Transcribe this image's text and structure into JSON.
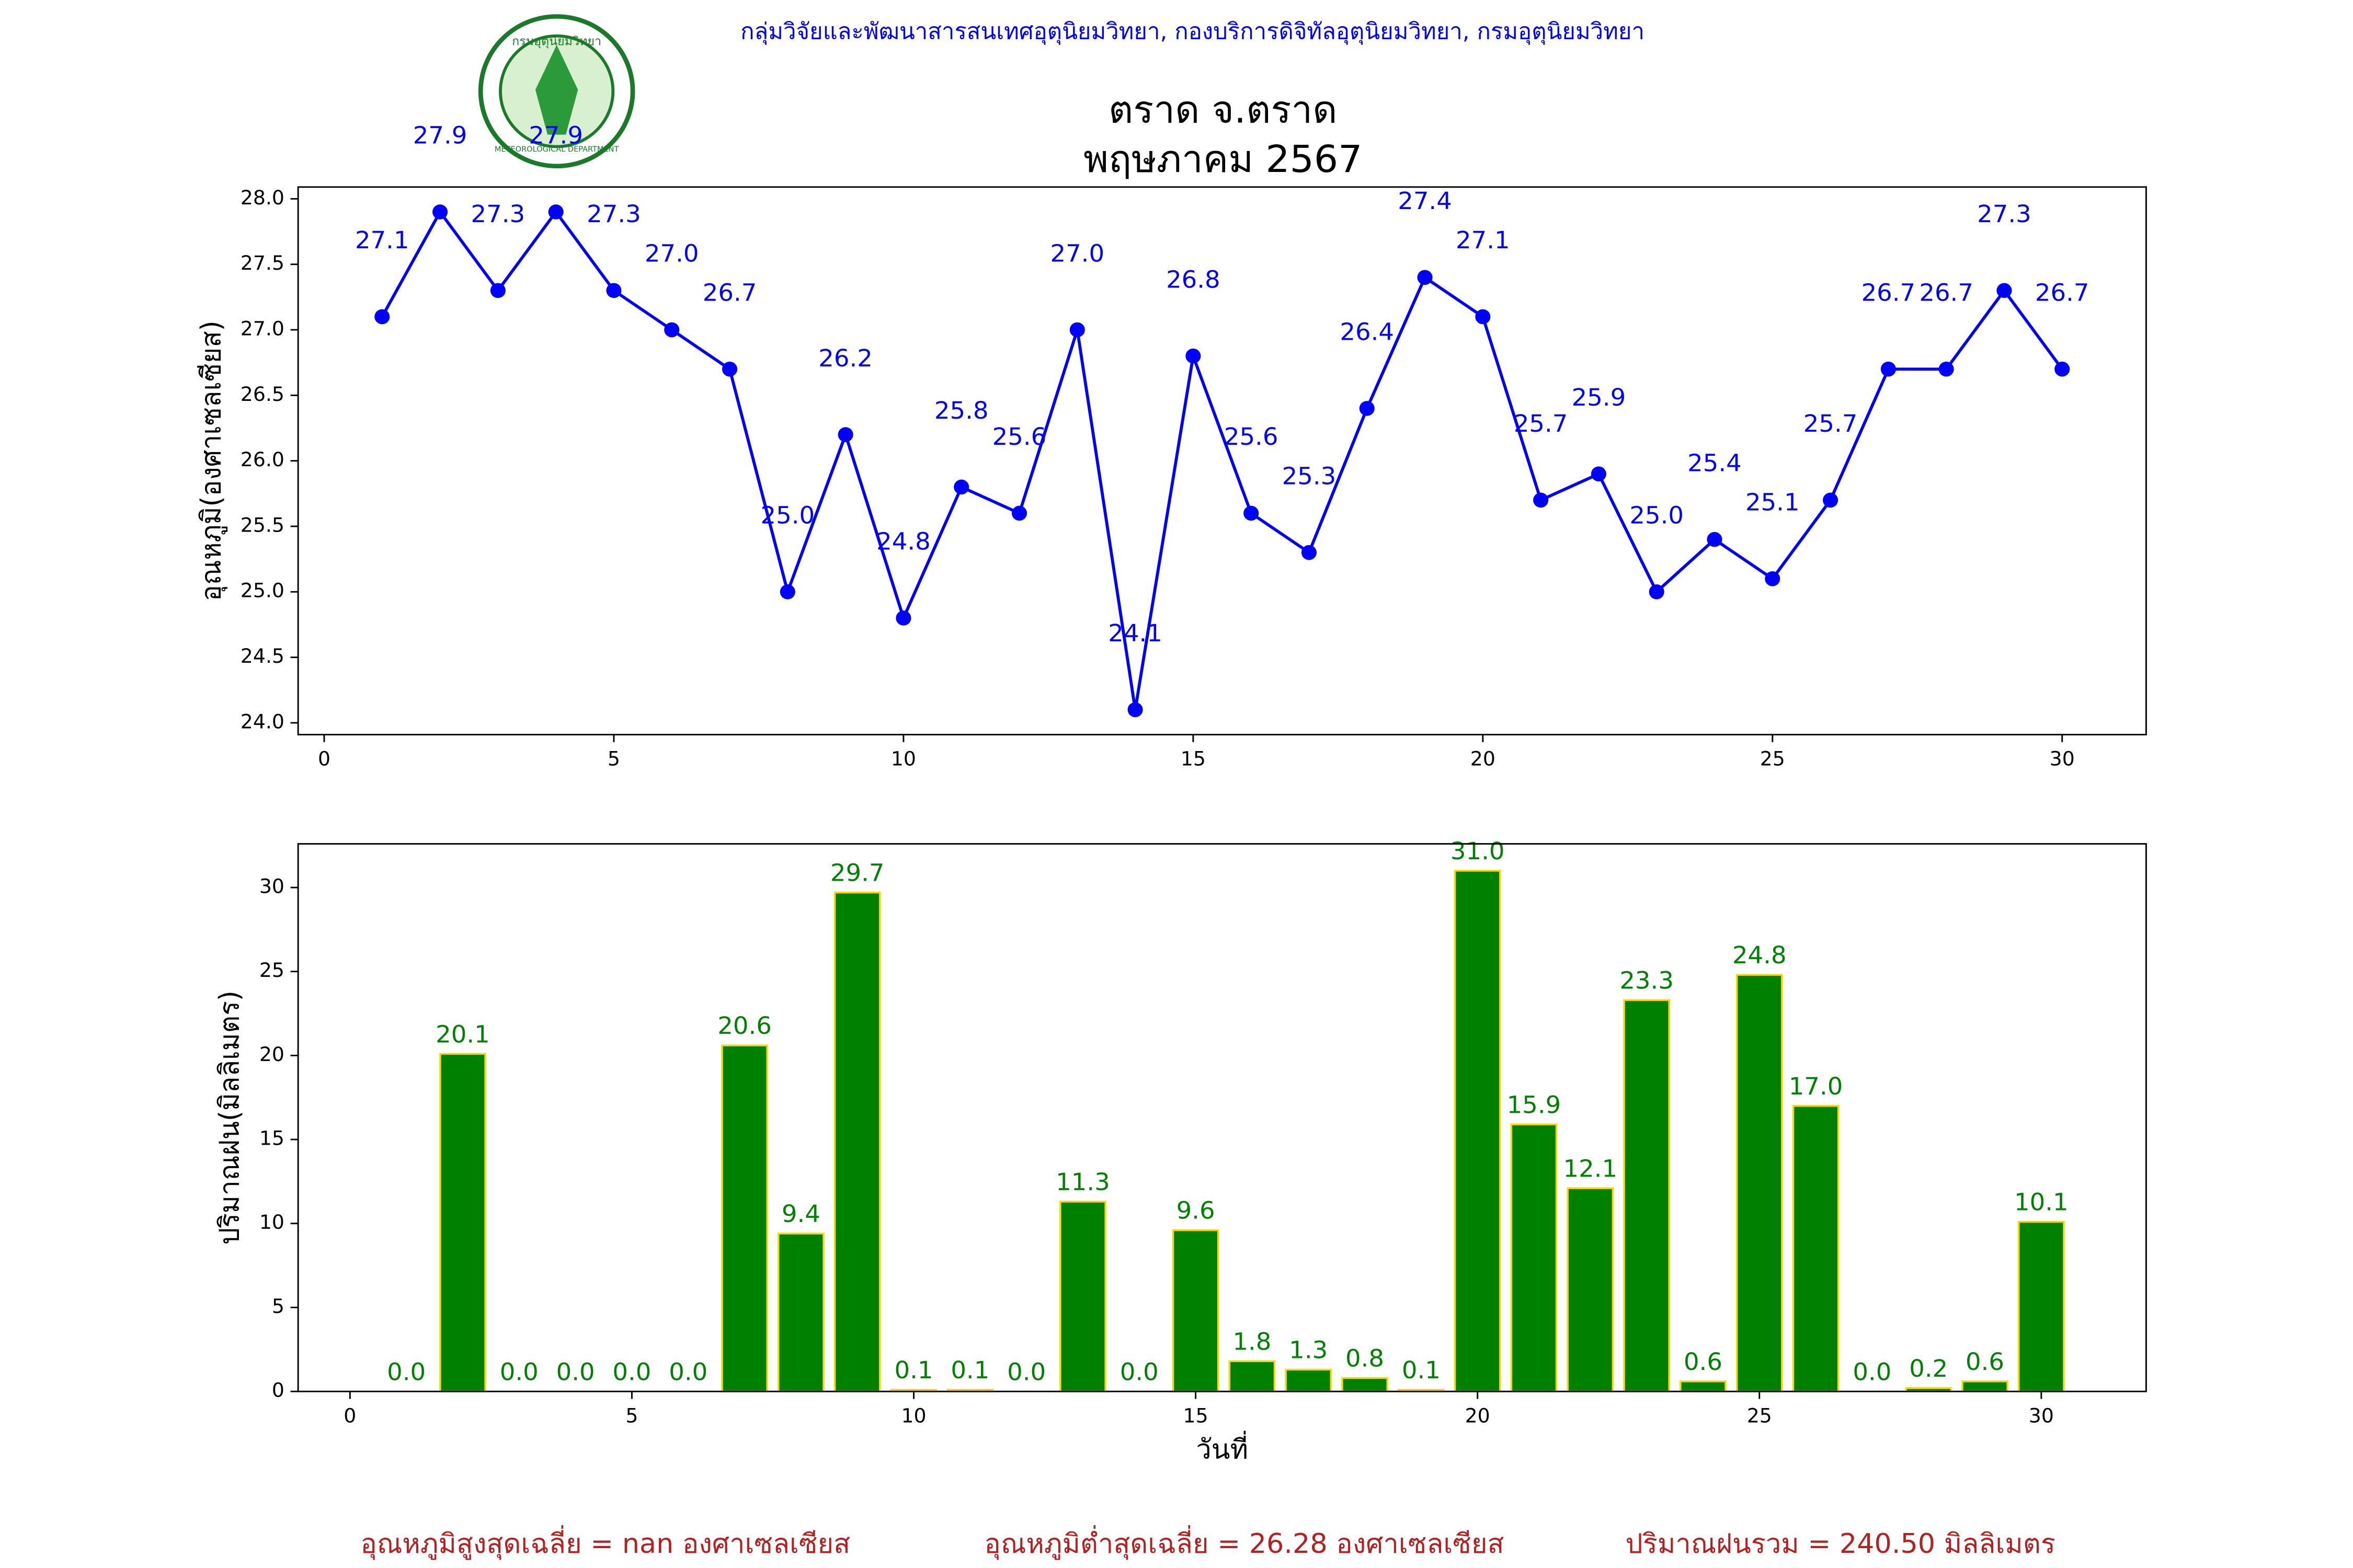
{
  "header": {
    "org": "กลุ่มวิจัยและพัฒนาสารสนเทศอุตุนิยมวิทยา, กองบริการดิจิทัลอุตุนิยมวิทยา, กรมอุตุนิยมวิทยา",
    "logo_top": "กรมอุตุนิยมวิทยา",
    "logo_bottom": "METEOROLOGICAL DEPARTMENT",
    "title": "ตราด จ.ตราด",
    "subtitle": "พฤษภาคม 2567"
  },
  "chart_data": [
    {
      "type": "line",
      "ylabel": "อุณหภูมิ(องศาเซลเซียส)",
      "color": "#0000ff",
      "x": [
        1,
        2,
        3,
        4,
        5,
        6,
        7,
        8,
        9,
        10,
        11,
        12,
        13,
        14,
        15,
        16,
        17,
        18,
        19,
        20,
        21,
        22,
        23,
        24,
        25,
        26,
        27,
        28,
        29,
        30
      ],
      "values": [
        27.1,
        27.9,
        27.3,
        27.9,
        27.3,
        27.0,
        26.7,
        25.0,
        26.2,
        24.8,
        25.8,
        25.6,
        27.0,
        24.1,
        26.8,
        25.6,
        25.3,
        26.4,
        27.4,
        27.1,
        25.7,
        25.9,
        25.0,
        25.4,
        25.1,
        25.7,
        26.7,
        26.7,
        27.3,
        26.7
      ],
      "value_labels": [
        "27.1",
        "27.9",
        "27.3",
        "27.9",
        "27.3",
        "27.0",
        "26.7",
        "25.0",
        "26.2",
        "24.8",
        "25.8",
        "25.6",
        "27.0",
        "24.1",
        "26.8",
        "25.6",
        "25.3",
        "26.4",
        "27.4",
        "27.1",
        "25.7",
        "25.9",
        "25.0",
        "25.4",
        "25.1",
        "25.7",
        "26.7",
        "26.7",
        "27.3",
        "26.7"
      ],
      "xlim": [
        -0.45,
        31.45
      ],
      "xticks": [
        0,
        5,
        10,
        15,
        20,
        25,
        30
      ],
      "ylim": [
        23.91,
        28.09
      ],
      "yticks": [
        {
          "value": 24,
          "label": "24.0"
        },
        {
          "value": 24.5,
          "label": "24.5"
        },
        {
          "value": 25,
          "label": "25.0"
        },
        {
          "value": 25.5,
          "label": "25.5"
        },
        {
          "value": 26,
          "label": "26.0"
        },
        {
          "value": 26.5,
          "label": "26.5"
        },
        {
          "value": 27,
          "label": "27.0"
        },
        {
          "value": 27.5,
          "label": "27.5"
        },
        {
          "value": 28,
          "label": "28.0"
        }
      ]
    },
    {
      "type": "bar",
      "ylabel": "ปริมาณฝน(มิลลิเมตร)",
      "xlabel": "วันที่",
      "color": "#008000",
      "edgecolor": "#ffd700",
      "label_color": "#008000",
      "x": [
        1,
        2,
        3,
        4,
        5,
        6,
        7,
        8,
        9,
        10,
        11,
        12,
        13,
        14,
        15,
        16,
        17,
        18,
        19,
        20,
        21,
        22,
        23,
        24,
        25,
        26,
        27,
        28,
        29,
        30
      ],
      "values": [
        0.0,
        20.1,
        0.0,
        0.0,
        0.0,
        0.0,
        20.6,
        9.4,
        29.7,
        0.1,
        0.1,
        0.0,
        11.3,
        0.0,
        9.6,
        1.8,
        1.3,
        0.8,
        0.1,
        31.0,
        15.9,
        12.1,
        23.3,
        0.6,
        24.8,
        17.0,
        0.0,
        0.2,
        0.6,
        10.1
      ],
      "value_labels": [
        "0.0",
        "20.1",
        "0.0",
        "0.0",
        "0.0",
        "0.0",
        "20.6",
        "9.4",
        "29.7",
        "0.1",
        "0.1",
        "0.0",
        "11.3",
        "0.0",
        "9.6",
        "1.8",
        "1.3",
        "0.8",
        "0.1",
        "31.0",
        "15.9",
        "12.1",
        "23.3",
        "0.6",
        "24.8",
        "17.0",
        "0.0",
        "0.2",
        "0.6",
        "10.1"
      ],
      "xlim": [
        -0.92,
        31.86
      ],
      "xticks": [
        0,
        5,
        10,
        15,
        20,
        25,
        30
      ],
      "ylim": [
        0,
        32.6
      ],
      "yticks": [
        0,
        5,
        10,
        15,
        20,
        25,
        30
      ]
    }
  ],
  "footer": [
    "อุณหภูมิสูงสุดเฉลี่ย = nan องศาเซลเซียส",
    "อุณหภูมิต่ำสุดเฉลี่ย = 26.28 องศาเซลเซียส",
    "ปริมาณฝนรวม = 240.50 มิลลิเมตร"
  ]
}
